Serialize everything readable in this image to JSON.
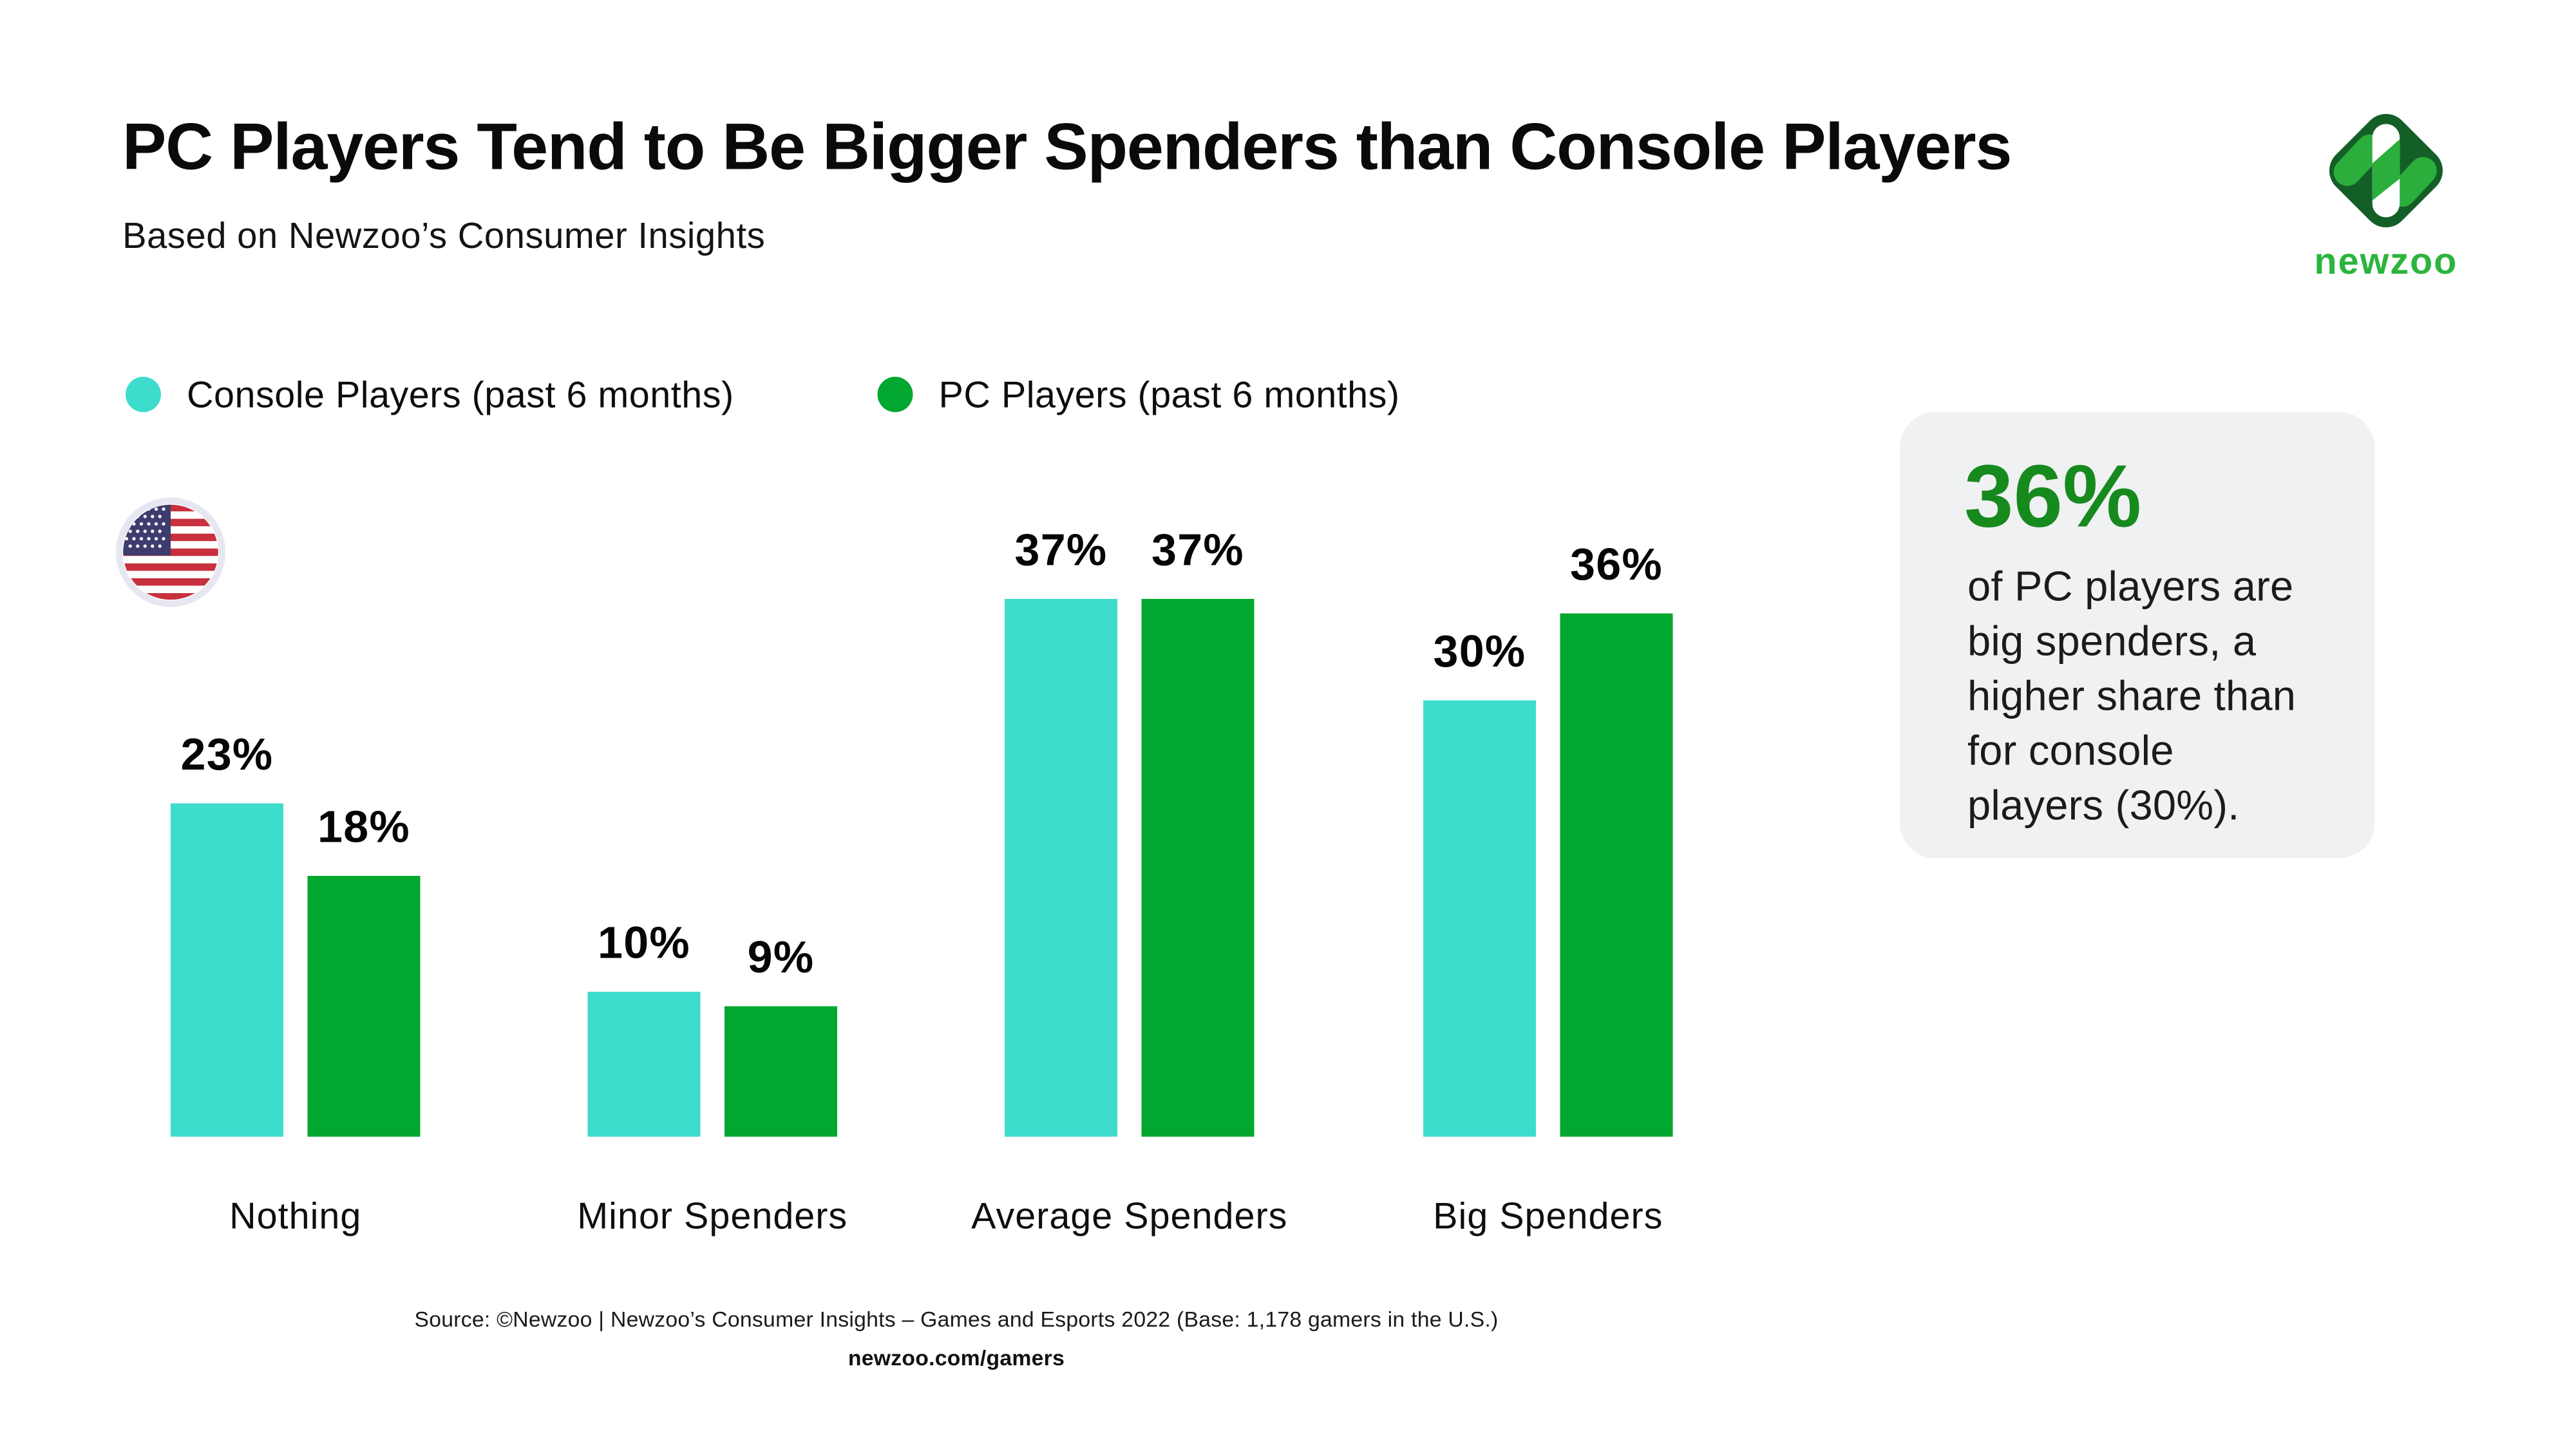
{
  "header": {
    "title": "PC Players Tend to Be Bigger Spenders than Console Players",
    "subtitle": "Based on Newzoo’s Consumer Insights"
  },
  "legend": {
    "items": [
      {
        "label": "Console Players (past 6 months)",
        "color": "#3EDCCD"
      },
      {
        "label": "PC Players (past 6 months)",
        "color": "#02A72F"
      }
    ]
  },
  "chart_data": {
    "type": "bar",
    "title": "PC Players Tend to Be Bigger Spenders than Console Players",
    "subtitle": "Based on Newzoo’s Consumer Insights",
    "region": "United States",
    "categories": [
      "Nothing",
      "Minor Spenders",
      "Average Spenders",
      "Big Spenders"
    ],
    "series": [
      {
        "name": "Console Players (past 6 months)",
        "color": "#3EDCCD",
        "values": [
          23,
          10,
          37,
          30
        ]
      },
      {
        "name": "PC Players (past 6 months)",
        "color": "#02A72F",
        "values": [
          18,
          9,
          37,
          36
        ]
      }
    ],
    "value_suffix": "%",
    "value_labels": true,
    "ylim": [
      0,
      40
    ],
    "grid": false,
    "axes_visible": false,
    "legend_position": "top-left"
  },
  "callout": {
    "headline": "36%",
    "headline_color": "#178A1E",
    "text": "of PC players are big spenders, a higher share than for console players (30%)."
  },
  "footer": {
    "source": "Source: ©Newzoo | Newzoo’s Consumer Insights – Games and Esports 2022 (Base: 1,178 gamers in the U.S.)",
    "link": "newzoo.com/gamers"
  },
  "logo": {
    "wordmark": "newzoo"
  },
  "colors": {
    "console_teal": "#3EDCCD",
    "pc_green": "#02A72F",
    "callout_bg": "#F0F1F2",
    "callout_green": "#178A1E",
    "logo_dark_green": "#145F28",
    "logo_bright_green": "#2BAE3C",
    "flag_red": "#C7303C",
    "flag_blue": "#3D3C6E"
  }
}
